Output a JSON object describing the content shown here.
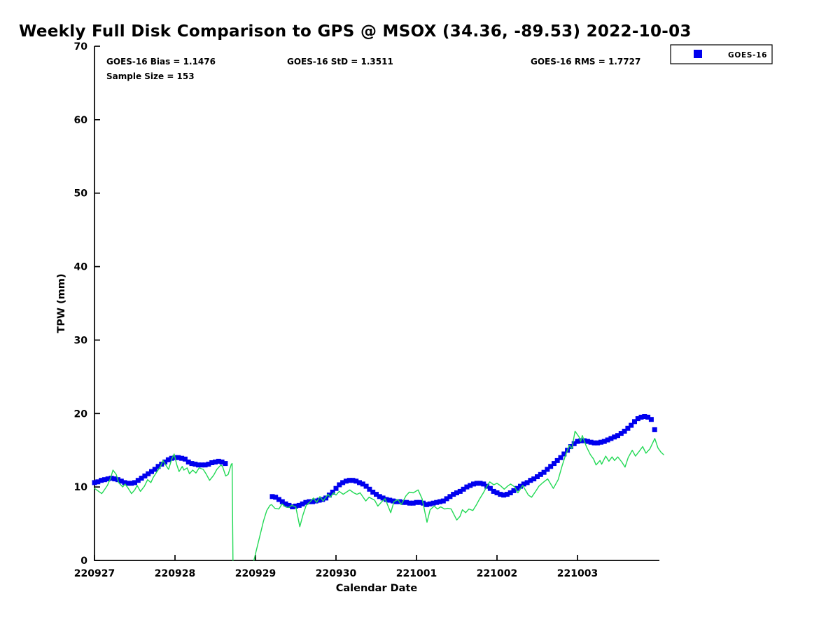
{
  "title": "Weekly Full Disk Comparison to GPS @ MSOX (34.36, -89.53) 2022-10-03",
  "stats": {
    "bias": "GOES-16 Bias = 1.1476",
    "std": "GOES-16 StD = 1.3511",
    "rms": "GOES-16 RMS = 1.7727",
    "sample": "Sample Size = 153"
  },
  "legend": {
    "items": [
      {
        "label": "GOES-16",
        "marker": "square-icon",
        "color": "#0000ee"
      }
    ]
  },
  "axes": {
    "xlabel": "Calendar Date",
    "ylabel": "TPW (mm)",
    "y_ticks": [
      0,
      10,
      20,
      30,
      40,
      50,
      60,
      70
    ],
    "x_ticks": [
      {
        "day": 0,
        "label": "220927"
      },
      {
        "day": 1,
        "label": "220928"
      },
      {
        "day": 2,
        "label": "220929"
      },
      {
        "day": 3,
        "label": "220930"
      },
      {
        "day": 4,
        "label": "221001"
      },
      {
        "day": 5,
        "label": "221002"
      },
      {
        "day": 6,
        "label": "221003"
      }
    ]
  },
  "colors": {
    "goes16": "#0000ee",
    "gps": "#22d955",
    "axis": "#000000",
    "background": "#ffffff"
  },
  "chart_data": {
    "type": "line",
    "title": "Weekly Full Disk Comparison to GPS @ MSOX (34.36, -89.53) 2022-10-03",
    "xlabel": "Calendar Date",
    "ylabel": "TPW (mm)",
    "ylim": [
      0,
      70
    ],
    "x_axis_span_days": [
      0,
      7.02
    ],
    "x_tick_labels": [
      "220927",
      "220928",
      "220929",
      "220930",
      "221001",
      "221002",
      "221003"
    ],
    "grid": false,
    "legend_position": "top-right-outside",
    "goes16_bias": 1.1476,
    "goes16_std": 1.3511,
    "goes16_rms": 1.7727,
    "sample_size": 153,
    "series": [
      {
        "name": "GOES-16",
        "style": "scatter-square",
        "color": "#0000ee",
        "units": "mm",
        "segments": [
          {
            "start_day": 0.0,
            "step_days": 0.041667,
            "values": [
              10.6,
              10.7,
              10.9,
              11.0,
              11.1,
              11.2,
              11.1,
              11.0,
              10.8,
              10.6,
              10.5,
              10.5,
              10.6,
              10.9,
              11.2,
              11.5,
              11.8,
              12.1,
              12.4,
              12.8,
              13.1,
              13.4,
              13.7,
              13.9,
              14.0,
              14.0,
              13.9,
              13.8,
              13.4,
              13.2,
              13.1,
              13.0,
              13.0,
              13.0,
              13.1,
              13.3,
              13.4,
              13.5,
              13.4,
              13.2
            ]
          },
          {
            "start_day": 2.2083,
            "step_days": 0.041667,
            "values": [
              8.7,
              8.6,
              8.3,
              8.0,
              7.7,
              7.5,
              7.3,
              7.4,
              7.5,
              7.7,
              7.9,
              8.0,
              8.0,
              8.1,
              8.2,
              8.3,
              8.5,
              8.9,
              9.3,
              9.8,
              10.3,
              10.6,
              10.8,
              10.9,
              10.9,
              10.8,
              10.6,
              10.4,
              10.1,
              9.7,
              9.3,
              9.0,
              8.7,
              8.5,
              8.3,
              8.2,
              8.1,
              8.0,
              8.0,
              7.9,
              7.9,
              7.8,
              7.8,
              7.9,
              7.9,
              7.8,
              7.6,
              7.7,
              7.8,
              7.9,
              8.0,
              8.1,
              8.4,
              8.7,
              9.0,
              9.2,
              9.4,
              9.7,
              10.0,
              10.2,
              10.4,
              10.5,
              10.5,
              10.4,
              10.1,
              9.8,
              9.4,
              9.2,
              9.0,
              8.9,
              9.0,
              9.2,
              9.5,
              9.8,
              10.1,
              10.4,
              10.6,
              10.9,
              11.1,
              11.4,
              11.7,
              12.0,
              12.4,
              12.8,
              13.2,
              13.6,
              14.0,
              14.5,
              15.0,
              15.5,
              15.9,
              16.2,
              16.3,
              16.3,
              16.2,
              16.1,
              16.0,
              16.0,
              16.1,
              16.2,
              16.4,
              16.6,
              16.8,
              17.0,
              17.3,
              17.6,
              18.0,
              18.4,
              18.9,
              19.3,
              19.5,
              19.6,
              19.5,
              19.2,
              17.8
            ]
          }
        ]
      },
      {
        "name": "GPS",
        "style": "line",
        "color": "#22d955",
        "units": "mm",
        "segments": [
          [
            [
              0.0,
              9.8
            ],
            [
              0.04,
              9.5
            ],
            [
              0.09,
              9.1
            ],
            [
              0.11,
              9.4
            ],
            [
              0.16,
              10.2
            ],
            [
              0.2,
              11.2
            ],
            [
              0.23,
              12.3
            ],
            [
              0.27,
              11.7
            ],
            [
              0.3,
              10.6
            ],
            [
              0.35,
              10.0
            ],
            [
              0.38,
              10.4
            ],
            [
              0.42,
              9.8
            ],
            [
              0.46,
              9.1
            ],
            [
              0.5,
              9.6
            ],
            [
              0.53,
              10.2
            ],
            [
              0.57,
              9.4
            ],
            [
              0.62,
              10.1
            ],
            [
              0.66,
              11.0
            ],
            [
              0.7,
              10.6
            ],
            [
              0.73,
              11.3
            ],
            [
              0.77,
              12.0
            ],
            [
              0.82,
              12.8
            ],
            [
              0.85,
              13.6
            ],
            [
              0.89,
              12.9
            ],
            [
              0.92,
              12.4
            ],
            [
              0.96,
              13.8
            ],
            [
              0.99,
              14.5
            ],
            [
              1.02,
              13.1
            ],
            [
              1.05,
              12.1
            ],
            [
              1.09,
              12.8
            ],
            [
              1.11,
              12.3
            ],
            [
              1.15,
              12.6
            ],
            [
              1.18,
              11.8
            ],
            [
              1.22,
              12.3
            ],
            [
              1.26,
              11.9
            ],
            [
              1.3,
              12.6
            ],
            [
              1.35,
              12.4
            ],
            [
              1.39,
              11.7
            ],
            [
              1.43,
              10.9
            ],
            [
              1.48,
              11.6
            ],
            [
              1.52,
              12.4
            ],
            [
              1.57,
              13.0
            ],
            [
              1.59,
              12.8
            ],
            [
              1.63,
              11.5
            ],
            [
              1.66,
              11.7
            ],
            [
              1.7,
              13.1
            ],
            [
              1.71,
              13.2
            ],
            [
              1.72,
              0.0
            ]
          ],
          [
            [
              1.98,
              0.0
            ],
            [
              2.02,
              1.8
            ],
            [
              2.06,
              3.6
            ],
            [
              2.1,
              5.4
            ],
            [
              2.14,
              6.8
            ],
            [
              2.18,
              7.5
            ],
            [
              2.2,
              7.6
            ],
            [
              2.24,
              7.1
            ],
            [
              2.29,
              7.0
            ],
            [
              2.33,
              7.7
            ],
            [
              2.37,
              7.3
            ],
            [
              2.41,
              7.2
            ],
            [
              2.45,
              7.5
            ],
            [
              2.5,
              7.3
            ],
            [
              2.55,
              4.6
            ],
            [
              2.59,
              6.2
            ],
            [
              2.63,
              7.5
            ],
            [
              2.68,
              8.0
            ],
            [
              2.72,
              8.5
            ],
            [
              2.76,
              7.9
            ],
            [
              2.8,
              8.7
            ],
            [
              2.84,
              8.1
            ],
            [
              2.9,
              9.0
            ],
            [
              2.93,
              8.6
            ],
            [
              2.97,
              9.2
            ],
            [
              3.0,
              8.9
            ],
            [
              3.04,
              9.4
            ],
            [
              3.09,
              9.0
            ],
            [
              3.13,
              9.3
            ],
            [
              3.17,
              9.6
            ],
            [
              3.22,
              9.2
            ],
            [
              3.26,
              9.0
            ],
            [
              3.3,
              9.2
            ],
            [
              3.37,
              8.1
            ],
            [
              3.41,
              8.6
            ],
            [
              3.48,
              8.2
            ],
            [
              3.52,
              7.4
            ],
            [
              3.57,
              8.0
            ],
            [
              3.61,
              8.4
            ],
            [
              3.68,
              6.5
            ],
            [
              3.72,
              8.0
            ],
            [
              3.77,
              8.3
            ],
            [
              3.81,
              7.6
            ],
            [
              3.87,
              8.8
            ],
            [
              3.91,
              9.3
            ],
            [
              3.96,
              9.2
            ],
            [
              4.02,
              9.6
            ],
            [
              4.07,
              8.4
            ],
            [
              4.13,
              5.2
            ],
            [
              4.17,
              6.9
            ],
            [
              4.22,
              7.4
            ],
            [
              4.26,
              7.0
            ],
            [
              4.3,
              7.3
            ],
            [
              4.35,
              7.0
            ],
            [
              4.39,
              7.1
            ],
            [
              4.43,
              7.0
            ],
            [
              4.5,
              5.5
            ],
            [
              4.54,
              6.0
            ],
            [
              4.57,
              6.9
            ],
            [
              4.61,
              6.5
            ],
            [
              4.65,
              7.0
            ],
            [
              4.7,
              6.8
            ],
            [
              4.74,
              7.5
            ],
            [
              4.78,
              8.3
            ],
            [
              4.83,
              9.2
            ],
            [
              4.87,
              10.0
            ],
            [
              4.91,
              10.7
            ],
            [
              4.96,
              10.3
            ],
            [
              5.0,
              10.5
            ],
            [
              5.04,
              10.2
            ],
            [
              5.09,
              9.7
            ],
            [
              5.13,
              10.1
            ],
            [
              5.17,
              10.4
            ],
            [
              5.22,
              10.0
            ],
            [
              5.26,
              9.2
            ],
            [
              5.32,
              10.2
            ],
            [
              5.39,
              8.9
            ],
            [
              5.43,
              8.6
            ],
            [
              5.48,
              9.4
            ],
            [
              5.52,
              10.1
            ],
            [
              5.57,
              10.6
            ],
            [
              5.63,
              11.1
            ],
            [
              5.7,
              9.8
            ],
            [
              5.76,
              11.0
            ],
            [
              5.81,
              12.9
            ],
            [
              5.85,
              14.3
            ],
            [
              5.9,
              15.7
            ],
            [
              5.93,
              15.2
            ],
            [
              5.97,
              17.6
            ],
            [
              6.02,
              16.8
            ],
            [
              6.04,
              16.2
            ],
            [
              6.06,
              17.0
            ],
            [
              6.11,
              15.5
            ],
            [
              6.16,
              14.4
            ],
            [
              6.2,
              13.8
            ],
            [
              6.23,
              13.0
            ],
            [
              6.28,
              13.6
            ],
            [
              6.3,
              13.1
            ],
            [
              6.35,
              14.2
            ],
            [
              6.39,
              13.5
            ],
            [
              6.43,
              14.1
            ],
            [
              6.46,
              13.6
            ],
            [
              6.5,
              14.1
            ],
            [
              6.55,
              13.4
            ],
            [
              6.59,
              12.7
            ],
            [
              6.63,
              14.0
            ],
            [
              6.68,
              15.0
            ],
            [
              6.72,
              14.2
            ],
            [
              6.77,
              14.9
            ],
            [
              6.81,
              15.5
            ],
            [
              6.85,
              14.6
            ],
            [
              6.9,
              15.2
            ],
            [
              6.96,
              16.6
            ],
            [
              7.0,
              15.3
            ],
            [
              7.04,
              14.7
            ],
            [
              7.07,
              14.4
            ]
          ]
        ]
      }
    ]
  }
}
